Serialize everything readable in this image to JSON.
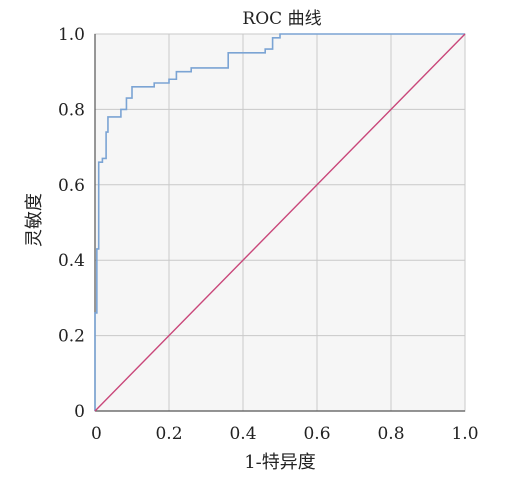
{
  "chart_data": {
    "type": "line",
    "title": "ROC 曲线",
    "xlabel": "1-特异度",
    "ylabel": "灵敏度",
    "xlim": [
      0,
      1
    ],
    "ylim": [
      0,
      1
    ],
    "x_ticks": [
      0,
      0.2,
      0.4,
      0.6,
      0.8,
      1.0
    ],
    "x_tick_labels": [
      "0",
      "0.2",
      "0.4",
      "0.6",
      "0.8",
      "1.0"
    ],
    "y_ticks": [
      0,
      0.2,
      0.4,
      0.6,
      0.8,
      1.0
    ],
    "y_tick_labels": [
      "0",
      "0.2",
      "0.4",
      "0.6",
      "0.8",
      "1.0"
    ],
    "grid": true,
    "series": [
      {
        "color": "#7ba4d4",
        "x": [
          0,
          0,
          0.005,
          0.005,
          0.01,
          0.01,
          0.02,
          0.02,
          0.03,
          0.03,
          0.035,
          0.035,
          0.045,
          0.045,
          0.07,
          0.07,
          0.085,
          0.085,
          0.1,
          0.1,
          0.16,
          0.16,
          0.2,
          0.2,
          0.22,
          0.22,
          0.26,
          0.26,
          0.36,
          0.36,
          0.46,
          0.46,
          0.48,
          0.48,
          0.5,
          0.5,
          0.8,
          0.8,
          1.0
        ],
        "y": [
          0,
          0.26,
          0.26,
          0.43,
          0.43,
          0.66,
          0.66,
          0.67,
          0.67,
          0.74,
          0.74,
          0.78,
          0.78,
          0.78,
          0.78,
          0.8,
          0.8,
          0.83,
          0.83,
          0.86,
          0.86,
          0.87,
          0.87,
          0.88,
          0.88,
          0.9,
          0.9,
          0.91,
          0.91,
          0.95,
          0.95,
          0.96,
          0.96,
          0.99,
          0.99,
          1.0,
          1.0,
          1.0,
          1.0
        ]
      },
      {
        "color": "#c9477a",
        "x": [
          0,
          1
        ],
        "y": [
          0,
          1
        ]
      }
    ]
  }
}
